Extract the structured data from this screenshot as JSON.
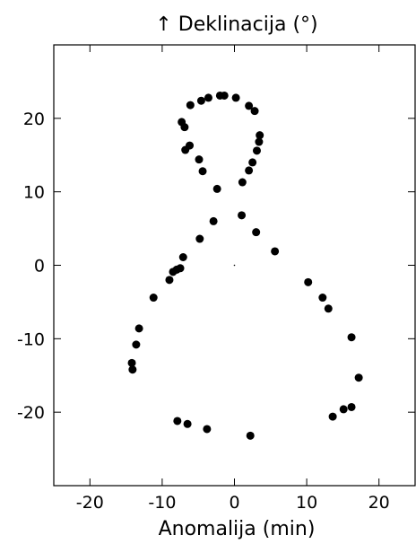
{
  "chart_data": {
    "type": "scatter",
    "title": "↑ Deklinacija (°)",
    "xlabel": "Anomalija (min)",
    "ylabel": "",
    "xlim": [
      -25,
      25
    ],
    "ylim": [
      -30,
      30
    ],
    "xticks": [
      -20,
      -10,
      0,
      10,
      20
    ],
    "yticks": [
      -20,
      -10,
      0,
      10,
      20
    ],
    "xtick_labels": [
      "-20",
      "-10",
      "0",
      "10",
      "20"
    ],
    "ytick_labels": [
      "-20",
      "-10",
      "0",
      "10",
      "20"
    ],
    "grid": false,
    "marker_color": "#000000",
    "series": [
      {
        "points": [
          [
            -3.6,
            22.8
          ],
          [
            -4.6,
            22.4
          ],
          [
            -6.1,
            21.8
          ],
          [
            -2.0,
            23.1
          ],
          [
            -1.4,
            23.1
          ],
          [
            0.2,
            22.8
          ],
          [
            2.0,
            21.7
          ],
          [
            2.8,
            21.0
          ],
          [
            -7.3,
            19.5
          ],
          [
            -6.9,
            18.8
          ],
          [
            3.5,
            17.7
          ],
          [
            3.4,
            16.8
          ],
          [
            -6.2,
            16.3
          ],
          [
            -6.8,
            15.7
          ],
          [
            3.1,
            15.6
          ],
          [
            -4.9,
            14.4
          ],
          [
            2.5,
            14.0
          ],
          [
            -4.4,
            12.8
          ],
          [
            2.0,
            12.9
          ],
          [
            1.1,
            11.3
          ],
          [
            -2.4,
            10.4
          ],
          [
            -2.9,
            6.0
          ],
          [
            1.0,
            6.8
          ],
          [
            3.0,
            4.5
          ],
          [
            -4.8,
            3.6
          ],
          [
            5.6,
            1.9
          ],
          [
            -7.1,
            1.1
          ],
          [
            -7.5,
            -0.4
          ],
          [
            -8.0,
            -0.6
          ],
          [
            -8.5,
            -0.9
          ],
          [
            -9.0,
            -2.0
          ],
          [
            10.2,
            -2.3
          ],
          [
            -11.2,
            -4.4
          ],
          [
            12.2,
            -4.4
          ],
          [
            13.0,
            -5.9
          ],
          [
            -13.2,
            -8.6
          ],
          [
            16.2,
            -9.8
          ],
          [
            -13.6,
            -10.8
          ],
          [
            -14.2,
            -13.3
          ],
          [
            -14.1,
            -14.2
          ],
          [
            17.2,
            -15.3
          ],
          [
            16.2,
            -19.3
          ],
          [
            15.1,
            -19.6
          ],
          [
            -7.9,
            -21.2
          ],
          [
            13.6,
            -20.6
          ],
          [
            -6.5,
            -21.6
          ],
          [
            -3.8,
            -22.3
          ],
          [
            2.2,
            -23.2
          ]
        ]
      }
    ]
  }
}
